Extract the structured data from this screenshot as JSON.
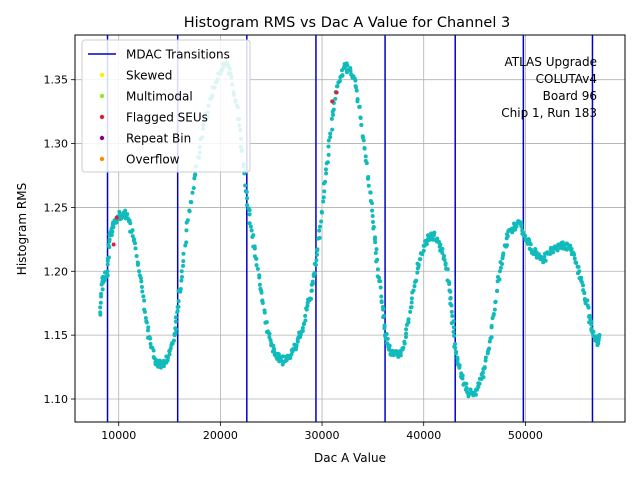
{
  "chart_data": {
    "type": "scatter",
    "title": "Histogram RMS vs Dac A Value for Channel 3",
    "xlabel": "Dac A Value",
    "ylabel": "Histogram RMS",
    "xlim": [
      5700,
      59800
    ],
    "ylim": [
      1.082,
      1.385
    ],
    "xticks": [
      10000,
      20000,
      30000,
      40000,
      50000
    ],
    "yticks": [
      1.1,
      1.15,
      1.2,
      1.25,
      1.3,
      1.35
    ],
    "xtick_labels": [
      "10000",
      "20000",
      "30000",
      "40000",
      "50000"
    ],
    "ytick_labels": [
      "1.10",
      "1.15",
      "1.20",
      "1.25",
      "1.30",
      "1.35"
    ],
    "grid": true,
    "legend_position": "top-left",
    "legend": [
      {
        "label": "MDAC Transitions",
        "kind": "line",
        "color": "#0000cc"
      },
      {
        "label": "Skewed",
        "kind": "dot",
        "color": "#ffee00"
      },
      {
        "label": "Multimodal",
        "kind": "dot",
        "color": "#88ee22"
      },
      {
        "label": "Flagged SEUs",
        "kind": "dot",
        "color": "#dd2233"
      },
      {
        "label": "Repeat Bin",
        "kind": "dot",
        "color": "#880088"
      },
      {
        "label": "Overflow",
        "kind": "dot",
        "color": "#ff8800"
      }
    ],
    "annotation": [
      "ATLAS Upgrade",
      "COLUTAv4",
      "Board 96",
      "Chip 1, Run 183"
    ],
    "mdac_transitions": [
      8900,
      15800,
      22600,
      29400,
      36200,
      43100,
      49800,
      56600
    ],
    "series": [
      {
        "name": "Histogram RMS",
        "color": "#11bbbb",
        "points": [
          [
            8200,
            1.166
          ],
          [
            8400,
            1.192
          ],
          [
            8600,
            1.195
          ],
          [
            8900,
            1.2
          ],
          [
            9100,
            1.225
          ],
          [
            9300,
            1.232
          ],
          [
            9600,
            1.24
          ],
          [
            10000,
            1.243
          ],
          [
            10500,
            1.246
          ],
          [
            11000,
            1.24
          ],
          [
            11500,
            1.225
          ],
          [
            12000,
            1.2
          ],
          [
            12500,
            1.17
          ],
          [
            13000,
            1.148
          ],
          [
            13500,
            1.132
          ],
          [
            14000,
            1.127
          ],
          [
            14500,
            1.128
          ],
          [
            15000,
            1.135
          ],
          [
            15500,
            1.15
          ],
          [
            15800,
            1.172
          ],
          [
            16200,
            1.2
          ],
          [
            16800,
            1.24
          ],
          [
            17500,
            1.275
          ],
          [
            18200,
            1.305
          ],
          [
            19000,
            1.335
          ],
          [
            19800,
            1.355
          ],
          [
            20500,
            1.362
          ],
          [
            21000,
            1.355
          ],
          [
            21600,
            1.33
          ],
          [
            22100,
            1.295
          ],
          [
            22600,
            1.262
          ],
          [
            23000,
            1.235
          ],
          [
            23500,
            1.21
          ],
          [
            24000,
            1.185
          ],
          [
            24500,
            1.16
          ],
          [
            25000,
            1.142
          ],
          [
            25500,
            1.133
          ],
          [
            26000,
            1.13
          ],
          [
            26500,
            1.131
          ],
          [
            27000,
            1.135
          ],
          [
            27500,
            1.142
          ],
          [
            28000,
            1.153
          ],
          [
            28500,
            1.17
          ],
          [
            29000,
            1.185
          ],
          [
            29400,
            1.205
          ],
          [
            29800,
            1.235
          ],
          [
            30300,
            1.27
          ],
          [
            30800,
            1.305
          ],
          [
            31300,
            1.335
          ],
          [
            31800,
            1.352
          ],
          [
            32300,
            1.36
          ],
          [
            32800,
            1.357
          ],
          [
            33300,
            1.345
          ],
          [
            33800,
            1.32
          ],
          [
            34300,
            1.29
          ],
          [
            34800,
            1.255
          ],
          [
            35200,
            1.225
          ],
          [
            35600,
            1.195
          ],
          [
            36000,
            1.17
          ],
          [
            36200,
            1.15
          ],
          [
            36600,
            1.14
          ],
          [
            37000,
            1.135
          ],
          [
            37500,
            1.133
          ],
          [
            38000,
            1.14
          ],
          [
            38500,
            1.16
          ],
          [
            39000,
            1.185
          ],
          [
            39500,
            1.205
          ],
          [
            40000,
            1.22
          ],
          [
            40500,
            1.226
          ],
          [
            41000,
            1.228
          ],
          [
            41500,
            1.223
          ],
          [
            42000,
            1.212
          ],
          [
            42500,
            1.19
          ],
          [
            42800,
            1.165
          ],
          [
            43100,
            1.14
          ],
          [
            43500,
            1.125
          ],
          [
            44000,
            1.112
          ],
          [
            44500,
            1.104
          ],
          [
            45000,
            1.105
          ],
          [
            45500,
            1.112
          ],
          [
            46000,
            1.125
          ],
          [
            46500,
            1.145
          ],
          [
            47000,
            1.17
          ],
          [
            47500,
            1.2
          ],
          [
            48000,
            1.22
          ],
          [
            48500,
            1.232
          ],
          [
            49000,
            1.236
          ],
          [
            49500,
            1.237
          ],
          [
            49800,
            1.23
          ],
          [
            50300,
            1.222
          ],
          [
            50800,
            1.215
          ],
          [
            51300,
            1.212
          ],
          [
            51800,
            1.21
          ],
          [
            52300,
            1.214
          ],
          [
            52800,
            1.218
          ],
          [
            53300,
            1.22
          ],
          [
            53800,
            1.221
          ],
          [
            54300,
            1.218
          ],
          [
            54800,
            1.213
          ],
          [
            55300,
            1.2
          ],
          [
            55800,
            1.183
          ],
          [
            56300,
            1.165
          ],
          [
            56600,
            1.152
          ],
          [
            57000,
            1.145
          ],
          [
            57300,
            1.15
          ]
        ]
      },
      {
        "name": "Flagged SEUs",
        "color": "#dd2233",
        "points": [
          [
            9500,
            1.221
          ],
          [
            9800,
            1.242
          ],
          [
            31000,
            1.333
          ],
          [
            31400,
            1.34
          ]
        ]
      }
    ]
  }
}
